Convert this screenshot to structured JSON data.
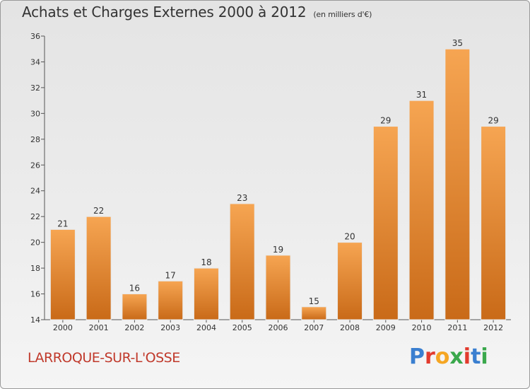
{
  "header": {
    "title": "Achats et Charges Externes 2000 à 2012",
    "subtitle": "(en milliers d'€)"
  },
  "footer": {
    "commune": "LARROQUE-SUR-L'OSSE",
    "logo_letters": [
      "P",
      "r",
      "o",
      "x",
      "i",
      "t",
      "i"
    ],
    "logo_colors": [
      "#3a7fd0",
      "#e23b2e",
      "#f5a623",
      "#3aa84c",
      "#e23b2e",
      "#3a7fd0",
      "#3aa84c"
    ]
  },
  "chart_data": {
    "type": "bar",
    "categories": [
      "2000",
      "2001",
      "2002",
      "2003",
      "2004",
      "2005",
      "2006",
      "2007",
      "2008",
      "2009",
      "2010",
      "2011",
      "2012"
    ],
    "values": [
      21,
      22,
      16,
      17,
      18,
      23,
      19,
      15,
      20,
      29,
      31,
      35,
      29
    ],
    "data_labels": [
      "21",
      "22",
      "16",
      "17",
      "18",
      "23",
      "19",
      "15",
      "20",
      "29",
      "31",
      "35",
      "29"
    ],
    "ylim": [
      14,
      36
    ],
    "yticks": [
      "14",
      "16",
      "18",
      "20",
      "22",
      "24",
      "26",
      "28",
      "30",
      "32",
      "34",
      "36"
    ],
    "grid": false,
    "bar_color_top": "#f6a552",
    "bar_color_bottom": "#c96a18"
  }
}
